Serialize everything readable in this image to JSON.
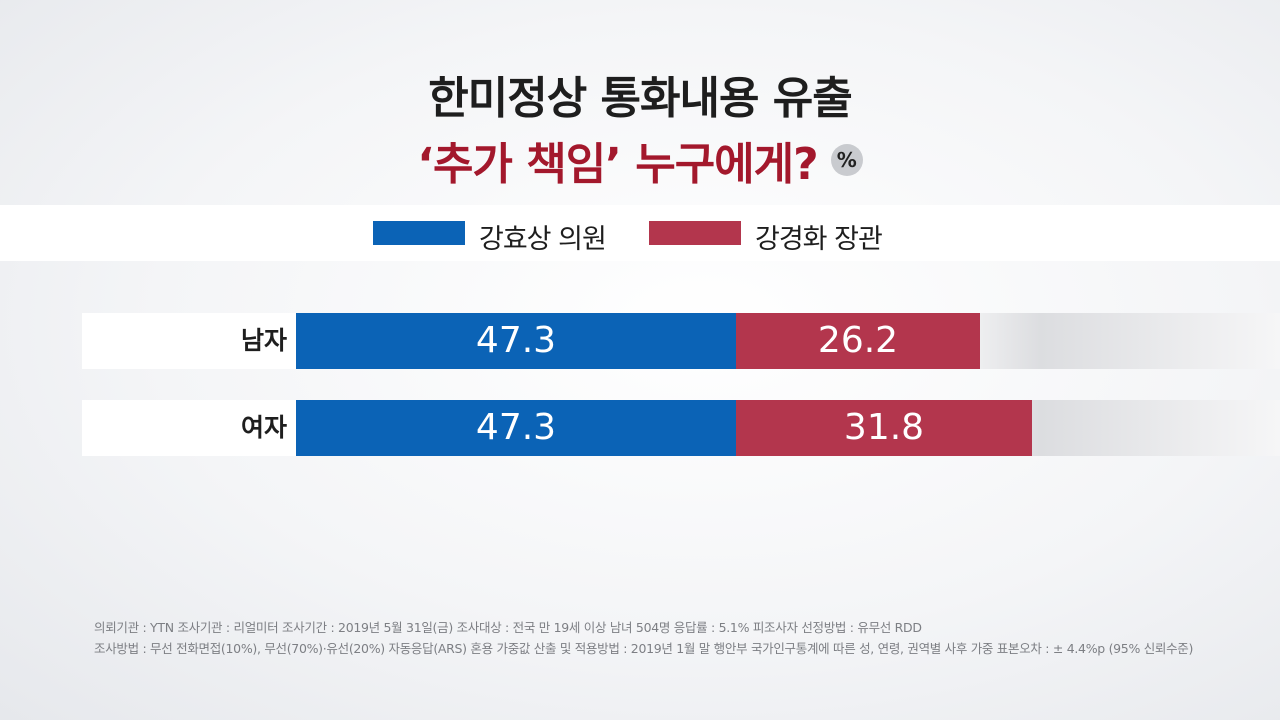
{
  "title_line1": "한미정상 통화내용 유출",
  "title_line2": "‘추가 책임’ 누구에게?",
  "unit_badge": "%",
  "colors": {
    "series1": "#0b63b6",
    "series2": "#b3364d"
  },
  "chart_data": {
    "type": "bar",
    "orientation": "horizontal",
    "stacked": true,
    "categories": [
      "남자",
      "여자"
    ],
    "series": [
      {
        "name": "강효상 의원",
        "values": [
          47.3,
          47.3
        ]
      },
      {
        "name": "강경화 장관",
        "values": [
          26.2,
          31.8
        ]
      }
    ],
    "unit": "%",
    "xlim": [
      0,
      100
    ],
    "legend": "top-center",
    "grid": false
  },
  "footnotes": [
    "의뢰기관 : YTN      조사기관 : 리얼미터      조사기간 : 2019년 5월 31일(금)    조사대상 : 전국 만 19세 이상 남녀 504명         응답률 : 5.1%     피조사자 선정방법 : 유무선 RDD",
    "조사방법 : 무선 전화면접(10%), 무선(70%)·유선(20%) 자동응답(ARS) 혼용     가중값 산출 및 적용방법 : 2019년 1월 말 행안부 국가인구통계에 따른 성, 연령, 권역별 사후 가중     표본오차 : ± 4.4%p (95% 신뢰수준)"
  ]
}
